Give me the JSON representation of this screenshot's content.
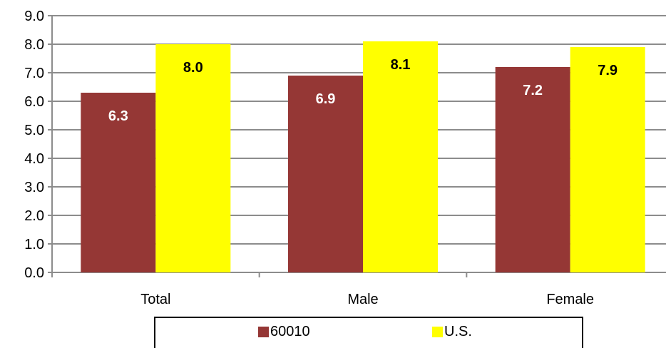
{
  "chart_data": {
    "type": "bar",
    "categories": [
      "Total",
      "Male",
      "Female"
    ],
    "series": [
      {
        "name": "60010",
        "color": "#953735",
        "values": [
          6.3,
          6.9,
          7.2
        ]
      },
      {
        "name": "U.S.",
        "color": "#FFFF00",
        "values": [
          8.0,
          8.1,
          7.9
        ]
      }
    ],
    "data_labels": [
      [
        "6.3",
        "6.9",
        "7.2"
      ],
      [
        "8.0",
        "8.1",
        "7.9"
      ]
    ],
    "data_label_colors": [
      "#FFFFFF",
      "#000000"
    ],
    "yticks": [
      "0.0",
      "1.0",
      "2.0",
      "3.0",
      "4.0",
      "5.0",
      "6.0",
      "7.0",
      "8.0",
      "9.0"
    ],
    "ylim": [
      0,
      9
    ],
    "grid": true,
    "legend_position": "bottom"
  }
}
